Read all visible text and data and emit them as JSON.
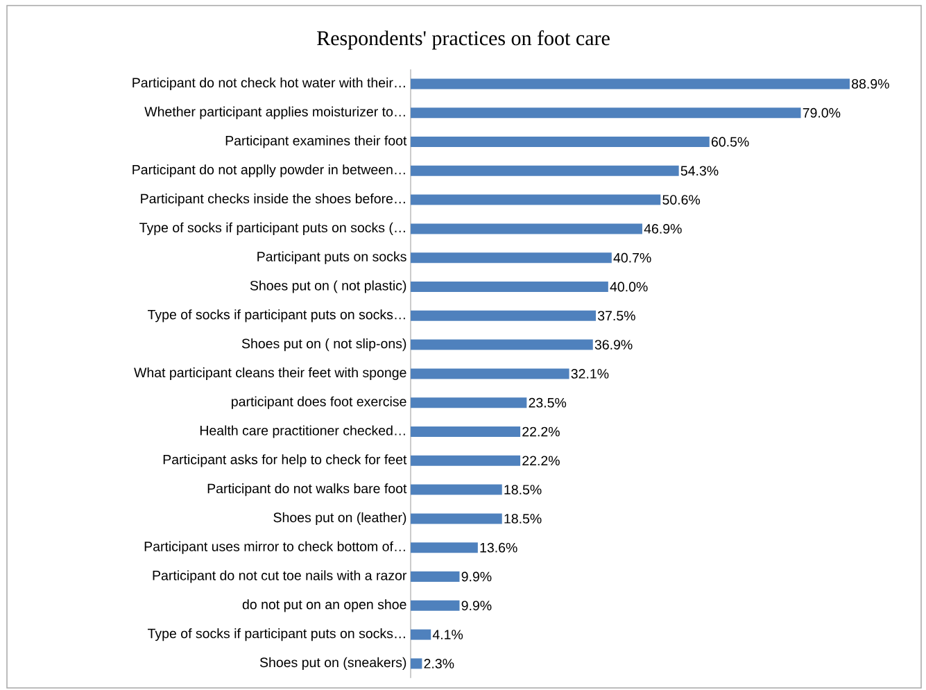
{
  "chart_data": {
    "type": "bar",
    "orientation": "horizontal",
    "title": "Respondents' practices on foot care",
    "categories": [
      "Participant do not check hot water with their…",
      "Whether participant applies moisturizer to…",
      "Participant examines their foot",
      "Participant do not applly powder in between…",
      "Participant checks inside the shoes before…",
      "Type of socks if participant puts on socks (…",
      "Participant puts on socks",
      "Shoes put on ( not plastic)",
      "Type of socks if participant puts on socks…",
      "Shoes put on ( not slip-ons)",
      "What participant cleans their feet with sponge",
      "participant does foot exercise",
      "Health care practitioner checked…",
      "Participant asks for help to check for feet",
      "Participant do not walks bare foot",
      "Shoes put on (leather)",
      "Participant uses mirror to check bottom of…",
      "Participant do not cut toe nails with a razor",
      "do not put on an open shoe",
      "Type of socks if participant puts on socks…",
      "Shoes put on (sneakers)"
    ],
    "values": [
      88.9,
      79.0,
      60.5,
      54.3,
      50.6,
      46.9,
      40.7,
      40.0,
      37.5,
      36.9,
      32.1,
      23.5,
      22.2,
      22.2,
      18.5,
      18.5,
      13.6,
      9.9,
      9.9,
      4.1,
      2.3
    ],
    "value_labels": [
      "88.9%",
      "79.0%",
      "60.5%",
      "54.3%",
      "50.6%",
      "46.9%",
      "40.7%",
      "40.0%",
      "37.5%",
      "36.9%",
      "32.1%",
      "23.5%",
      "22.2%",
      "22.2%",
      "18.5%",
      "18.5%",
      "13.6%",
      "9.9%",
      "9.9%",
      "4.1%",
      "2.3%"
    ],
    "color": "#4f81bd"
  }
}
